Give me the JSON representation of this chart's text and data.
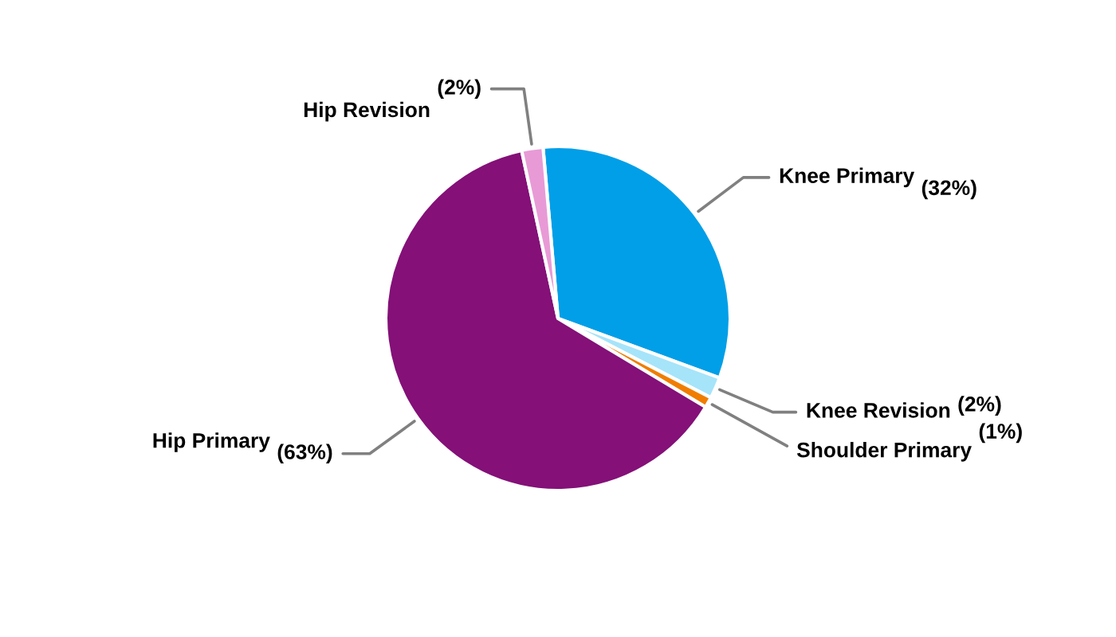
{
  "chart_data": {
    "type": "pie",
    "categories": [
      "Knee Primary",
      "Knee Revision",
      "Shoulder Primary",
      "Hip Primary",
      "Hip Revision"
    ],
    "values": [
      32,
      2,
      1,
      63,
      2
    ],
    "value_labels": [
      "(32%)",
      "(2%)",
      "(1%)",
      "(63%)",
      "(2%)"
    ],
    "colors": [
      "#009fe8",
      "#a6e4fa",
      "#f07d00",
      "#841078",
      "#e89ad6"
    ],
    "legend": false
  }
}
